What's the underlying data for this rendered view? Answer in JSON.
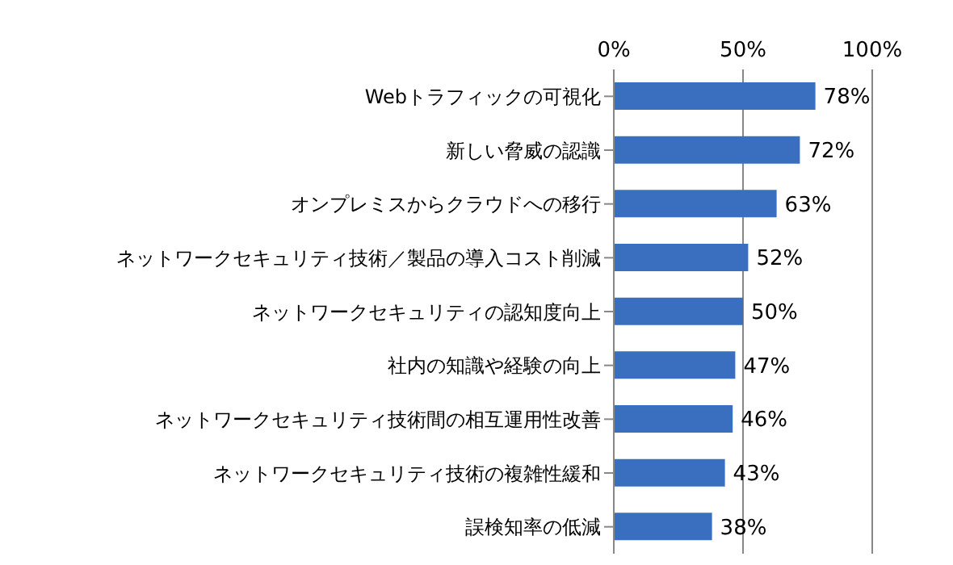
{
  "chart_data": {
    "type": "bar",
    "orientation": "horizontal",
    "categories": [
      "Webトラフィックの可視化",
      "新しい脅威の認識",
      "オンプレミスからクラウドへの移行",
      "ネットワークセキュリティ技術／製品の導入コスト削減",
      "ネットワークセキュリティの認知度向上",
      "社内の知識や経験の向上",
      "ネットワークセキュリティ技術間の相互運用性改善",
      "ネットワークセキュリティ技術の複雑性緩和",
      "誤検知率の低減"
    ],
    "values": [
      78,
      72,
      63,
      52,
      50,
      47,
      46,
      43,
      38
    ],
    "value_labels": [
      "78%",
      "72%",
      "63%",
      "52%",
      "50%",
      "47%",
      "46%",
      "43%",
      "38%"
    ],
    "color": "#3a6fbf",
    "xlim": [
      0,
      100
    ],
    "xticks": [
      {
        "value": 0,
        "label": "0%"
      },
      {
        "value": 50,
        "label": "50%"
      },
      {
        "value": 100,
        "label": "100%"
      }
    ],
    "grid": "x"
  }
}
